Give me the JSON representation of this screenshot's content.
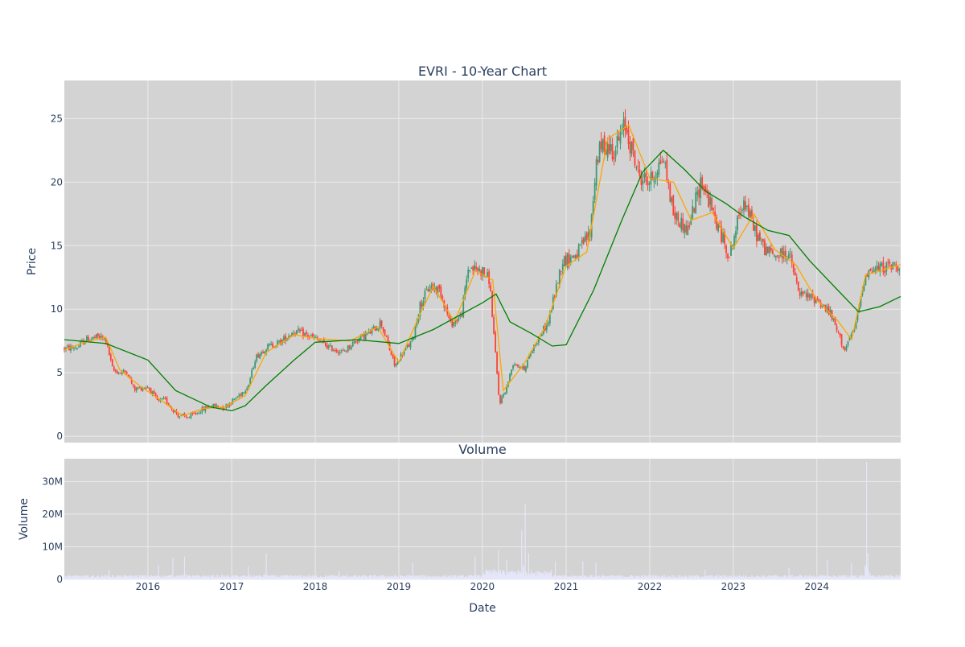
{
  "chart_data": [
    {
      "type": "candlestick",
      "title": "EVRI - 10-Year Chart",
      "xlabel": "",
      "ylabel": "Price",
      "ylim": [
        -0.5,
        28
      ],
      "y_ticks": [
        0,
        5,
        10,
        15,
        20,
        25
      ],
      "x_tick_dates": [
        "2016-01-01",
        "2017-01-01",
        "2018-01-01",
        "2019-01-01",
        "2020-01-01",
        "2021-01-01",
        "2022-01-01",
        "2023-01-01",
        "2024-01-01"
      ],
      "x_range": [
        "2015-01-01",
        "2025-01-01"
      ],
      "grid": true,
      "legend": "none",
      "colors": {
        "background": "#d3d3d3",
        "grid": "#ebebeb",
        "up": "#3d9970",
        "down": "#ff4136",
        "ma_short": "#ffa500",
        "ma_long": "#008000"
      },
      "series": [
        {
          "kind": "close",
          "points": [
            [
              "2015-01-01",
              6.9
            ],
            [
              "2015-03-01",
              7.0
            ],
            [
              "2015-04-01",
              7.6
            ],
            [
              "2015-06-01",
              7.8
            ],
            [
              "2015-07-01",
              7.6
            ],
            [
              "2015-08-01",
              5.2
            ],
            [
              "2015-09-01",
              5.0
            ],
            [
              "2015-10-01",
              5.1
            ],
            [
              "2015-11-01",
              3.7
            ],
            [
              "2016-01-01",
              3.9
            ],
            [
              "2016-02-15",
              2.7
            ],
            [
              "2016-03-15",
              2.9
            ],
            [
              "2016-04-15",
              2.2
            ],
            [
              "2016-05-15",
              1.6
            ],
            [
              "2016-07-01",
              1.5
            ],
            [
              "2016-08-15",
              2.0
            ],
            [
              "2016-10-01",
              2.4
            ],
            [
              "2016-12-01",
              2.3
            ],
            [
              "2017-02-01",
              3.2
            ],
            [
              "2017-03-15",
              4.0
            ],
            [
              "2017-04-15",
              6.2
            ],
            [
              "2017-06-01",
              7.0
            ],
            [
              "2017-08-01",
              7.4
            ],
            [
              "2017-10-01",
              8.3
            ],
            [
              "2018-01-01",
              7.7
            ],
            [
              "2018-03-01",
              7.0
            ],
            [
              "2018-05-01",
              6.6
            ],
            [
              "2018-07-01",
              7.6
            ],
            [
              "2018-09-01",
              8.2
            ],
            [
              "2018-10-15",
              9.0
            ],
            [
              "2018-12-15",
              5.5
            ],
            [
              "2019-01-15",
              6.5
            ],
            [
              "2019-03-01",
              7.5
            ],
            [
              "2019-04-01",
              10.2
            ],
            [
              "2019-05-15",
              11.8
            ],
            [
              "2019-07-01",
              11.5
            ],
            [
              "2019-08-15",
              8.8
            ],
            [
              "2019-10-01",
              9.5
            ],
            [
              "2019-11-01",
              13.3
            ],
            [
              "2020-01-01",
              13.0
            ],
            [
              "2020-02-01",
              12.3
            ],
            [
              "2020-03-15",
              2.6
            ],
            [
              "2020-04-15",
              3.8
            ],
            [
              "2020-05-15",
              5.8
            ],
            [
              "2020-07-01",
              5.3
            ],
            [
              "2020-08-15",
              7.2
            ],
            [
              "2020-10-15",
              9.0
            ],
            [
              "2020-12-15",
              13.8
            ],
            [
              "2021-02-15",
              14.3
            ],
            [
              "2021-04-15",
              16.0
            ],
            [
              "2021-05-15",
              22.0
            ],
            [
              "2021-06-15",
              23.0
            ],
            [
              "2021-08-01",
              22.5
            ],
            [
              "2021-09-15",
              24.5
            ],
            [
              "2021-11-15",
              20.5
            ],
            [
              "2022-01-01",
              20.0
            ],
            [
              "2022-03-01",
              22.0
            ],
            [
              "2022-04-15",
              17.5
            ],
            [
              "2022-06-15",
              16.2
            ],
            [
              "2022-08-15",
              20.2
            ],
            [
              "2022-10-15",
              17.0
            ],
            [
              "2022-12-15",
              14.2
            ],
            [
              "2023-02-15",
              18.8
            ],
            [
              "2023-04-01",
              16.3
            ],
            [
              "2023-05-15",
              14.8
            ],
            [
              "2023-07-01",
              14.2
            ],
            [
              "2023-09-01",
              14.4
            ],
            [
              "2023-10-15",
              11.2
            ],
            [
              "2024-01-01",
              10.8
            ],
            [
              "2024-03-01",
              9.6
            ],
            [
              "2024-05-01",
              6.8
            ],
            [
              "2024-06-15",
              8.5
            ],
            [
              "2024-08-01",
              12.9
            ],
            [
              "2024-10-15",
              13.3
            ],
            [
              "2025-01-01",
              13.5
            ]
          ]
        },
        {
          "kind": "ma_short",
          "points": [
            [
              "2015-01-01",
              6.8
            ],
            [
              "2015-04-01",
              7.4
            ],
            [
              "2015-07-01",
              7.8
            ],
            [
              "2015-09-01",
              5.2
            ],
            [
              "2015-12-01",
              3.9
            ],
            [
              "2016-03-01",
              2.8
            ],
            [
              "2016-06-01",
              1.6
            ],
            [
              "2016-09-01",
              2.2
            ],
            [
              "2016-12-01",
              2.3
            ],
            [
              "2017-03-01",
              3.2
            ],
            [
              "2017-06-01",
              6.6
            ],
            [
              "2017-10-01",
              8.0
            ],
            [
              "2018-01-01",
              7.7
            ],
            [
              "2018-06-01",
              7.5
            ],
            [
              "2018-10-01",
              8.6
            ],
            [
              "2019-01-01",
              5.8
            ],
            [
              "2019-04-01",
              9.5
            ],
            [
              "2019-06-01",
              11.8
            ],
            [
              "2019-09-01",
              9.0
            ],
            [
              "2019-12-01",
              13.0
            ],
            [
              "2020-02-15",
              12.3
            ],
            [
              "2020-04-01",
              3.6
            ],
            [
              "2020-07-01",
              5.7
            ],
            [
              "2020-10-01",
              8.6
            ],
            [
              "2021-01-01",
              13.4
            ],
            [
              "2021-04-01",
              14.5
            ],
            [
              "2021-07-01",
              23.4
            ],
            [
              "2021-10-01",
              24.5
            ],
            [
              "2022-01-01",
              20.3
            ],
            [
              "2022-04-15",
              20.0
            ],
            [
              "2022-07-01",
              17.0
            ],
            [
              "2022-10-01",
              17.6
            ],
            [
              "2023-01-01",
              14.8
            ],
            [
              "2023-04-01",
              17.5
            ],
            [
              "2023-07-01",
              14.7
            ],
            [
              "2023-10-01",
              13.5
            ],
            [
              "2024-01-01",
              10.7
            ],
            [
              "2024-04-01",
              9.1
            ],
            [
              "2024-06-01",
              7.6
            ],
            [
              "2024-08-01",
              12.7
            ],
            [
              "2025-01-01",
              13.5
            ]
          ]
        },
        {
          "kind": "ma_long",
          "points": [
            [
              "2015-01-01",
              7.6
            ],
            [
              "2015-07-01",
              7.3
            ],
            [
              "2016-01-01",
              6.0
            ],
            [
              "2016-05-01",
              3.6
            ],
            [
              "2016-10-01",
              2.3
            ],
            [
              "2017-01-01",
              2.0
            ],
            [
              "2017-03-01",
              2.4
            ],
            [
              "2017-06-01",
              4.0
            ],
            [
              "2017-10-01",
              6.0
            ],
            [
              "2018-01-01",
              7.4
            ],
            [
              "2018-07-01",
              7.6
            ],
            [
              "2019-01-01",
              7.3
            ],
            [
              "2019-06-01",
              8.4
            ],
            [
              "2020-01-01",
              10.5
            ],
            [
              "2020-03-01",
              11.2
            ],
            [
              "2020-05-01",
              9.0
            ],
            [
              "2020-08-01",
              8.1
            ],
            [
              "2020-11-01",
              7.1
            ],
            [
              "2021-01-01",
              7.2
            ],
            [
              "2021-05-01",
              11.5
            ],
            [
              "2021-09-01",
              17.0
            ],
            [
              "2021-12-01",
              20.8
            ],
            [
              "2022-03-01",
              22.5
            ],
            [
              "2022-06-01",
              21.0
            ],
            [
              "2022-09-01",
              19.3
            ],
            [
              "2022-12-01",
              18.3
            ],
            [
              "2023-02-15",
              17.3
            ],
            [
              "2023-06-01",
              16.2
            ],
            [
              "2023-09-01",
              15.8
            ],
            [
              "2023-12-01",
              13.8
            ],
            [
              "2024-04-01",
              11.5
            ],
            [
              "2024-07-01",
              9.8
            ],
            [
              "2024-10-01",
              10.2
            ],
            [
              "2025-01-01",
              11.0
            ]
          ]
        }
      ]
    },
    {
      "type": "bar",
      "title": "Volume",
      "xlabel": "Date",
      "ylabel": "Volume",
      "ylim": [
        0,
        37000000
      ],
      "y_ticks": [
        0,
        10000000,
        20000000,
        30000000
      ],
      "y_tick_labels": [
        "0",
        "10M",
        "20M",
        "30M"
      ],
      "x_tick_labels": [
        "2016",
        "2017",
        "2018",
        "2019",
        "2020",
        "2021",
        "2022",
        "2023",
        "2024"
      ],
      "grid": true,
      "colors": {
        "background": "#d3d3d3",
        "grid": "#ebebeb",
        "bar": "#e6e6fa"
      },
      "baseline": 1000000,
      "spikes": [
        [
          "2015-07-15",
          2800000
        ],
        [
          "2016-02-15",
          4500000
        ],
        [
          "2016-04-20",
          6500000
        ],
        [
          "2016-06-10",
          7000000
        ],
        [
          "2017-03-15",
          4000000
        ],
        [
          "2017-06-01",
          8000000
        ],
        [
          "2018-04-15",
          2500000
        ],
        [
          "2019-03-01",
          5000000
        ],
        [
          "2019-12-01",
          7000000
        ],
        [
          "2020-03-10",
          9000000
        ],
        [
          "2020-04-15",
          6000000
        ],
        [
          "2020-06-20",
          15000000
        ],
        [
          "2020-07-05",
          23000000
        ],
        [
          "2020-07-20",
          8000000
        ],
        [
          "2020-11-15",
          5500000
        ],
        [
          "2021-03-15",
          5500000
        ],
        [
          "2021-05-10",
          5000000
        ],
        [
          "2022-09-01",
          3000000
        ],
        [
          "2023-09-01",
          3500000
        ],
        [
          "2024-02-15",
          6000000
        ],
        [
          "2024-06-01",
          5000000
        ],
        [
          "2024-08-05",
          36000000
        ],
        [
          "2024-08-12",
          8000000
        ]
      ]
    }
  ]
}
